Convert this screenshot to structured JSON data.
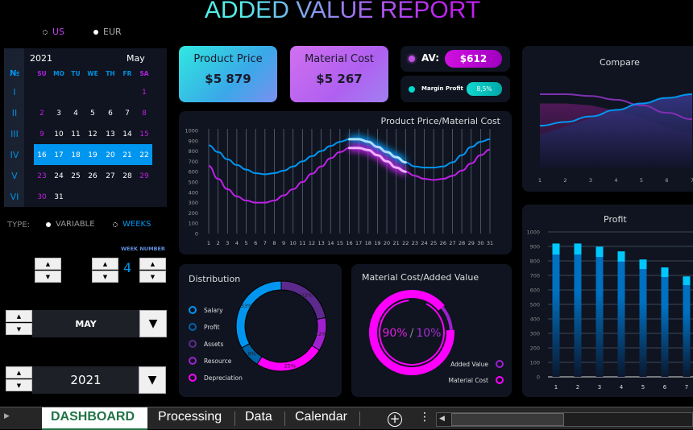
{
  "title": "ADDED VALUE REPORT",
  "currency": {
    "options": [
      "US",
      "EUR"
    ],
    "selected": "US"
  },
  "calendar": {
    "year": "2021",
    "month": "May",
    "no_label": "№",
    "weekdays": [
      "SU",
      "MO",
      "TU",
      "WE",
      "TH",
      "FR",
      "SA"
    ],
    "week_labels": [
      "I",
      "II",
      "III",
      "IV",
      "V",
      "VI"
    ],
    "weeks": [
      [
        "",
        "",
        "",
        "",
        "",
        "",
        "1"
      ],
      [
        "2",
        "3",
        "4",
        "5",
        "6",
        "7",
        "8"
      ],
      [
        "9",
        "10",
        "11",
        "12",
        "13",
        "14",
        "15"
      ],
      [
        "16",
        "17",
        "18",
        "19",
        "20",
        "21",
        "22"
      ],
      [
        "23",
        "24",
        "25",
        "26",
        "27",
        "28",
        "29"
      ],
      [
        "30",
        "31",
        "",
        "",
        "",
        "",
        ""
      ]
    ],
    "selected_week": 4
  },
  "type": {
    "label": "TYPE:",
    "options": [
      "VARIABLE",
      "WEEKS"
    ],
    "selected": "WEEKS"
  },
  "week_number": {
    "label": "WEEK NUMBER",
    "value": "4"
  },
  "month_select": {
    "value": "MAY"
  },
  "year_select": {
    "value": "2021"
  },
  "kpis": {
    "product_price": {
      "label": "Product Price",
      "value": "$5 879"
    },
    "material_cost": {
      "label": "Material Cost",
      "value": "$5 267"
    },
    "av": {
      "label": "AV:",
      "value": "$612"
    },
    "margin": {
      "label": "Margin Profit",
      "value": "8,5%"
    }
  },
  "colors": {
    "blue": "#0096f0",
    "purple": "#c020e8",
    "magenta": "#ff00ff",
    "cyan": "#00d0ff"
  },
  "chart_data": [
    {
      "type": "line",
      "title": "Product Price/Material Cost",
      "ylim": [
        0,
        1000
      ],
      "yticks": [
        0,
        100,
        200,
        300,
        400,
        500,
        600,
        700,
        800,
        900,
        1000
      ],
      "x": [
        1,
        2,
        3,
        4,
        5,
        6,
        7,
        8,
        9,
        10,
        11,
        12,
        13,
        14,
        15,
        16,
        17,
        18,
        19,
        20,
        21,
        22,
        23,
        24,
        25,
        26,
        27,
        28,
        29,
        30,
        31
      ],
      "highlight_range": [
        16,
        22
      ],
      "series": [
        {
          "color": "#0096f0",
          "values": [
            855,
            790,
            720,
            665,
            620,
            585,
            575,
            585,
            610,
            650,
            700,
            750,
            800,
            850,
            890,
            915,
            915,
            890,
            840,
            790,
            740,
            690,
            650,
            640,
            640,
            650,
            690,
            760,
            840,
            890,
            915
          ]
        },
        {
          "color": "#c020e8",
          "values": [
            655,
            530,
            430,
            360,
            320,
            300,
            300,
            320,
            370,
            430,
            500,
            580,
            650,
            730,
            790,
            830,
            830,
            810,
            760,
            700,
            640,
            600,
            560,
            530,
            520,
            530,
            560,
            610,
            680,
            760,
            815
          ]
        }
      ]
    },
    {
      "type": "pie",
      "title": "Distribution",
      "labels": [
        "Salary",
        "Profit",
        "Assets",
        "Resource",
        "Depreciation"
      ],
      "values": [
        33,
        8,
        22,
        12,
        25
      ],
      "colors": [
        "#0096f0",
        "#0064a8",
        "#5c2a8c",
        "#a020d0",
        "#ff00ff"
      ]
    },
    {
      "type": "pie",
      "title": "Material Cost/Added Value",
      "labels": [
        "Added Value",
        "Material Cost"
      ],
      "values": [
        10,
        90
      ],
      "value_labels": [
        "10%",
        "90%"
      ],
      "colors": [
        "#a020d0",
        "#ff00ff"
      ]
    },
    {
      "type": "area",
      "title": "Compare",
      "x": [
        1,
        2,
        3,
        4,
        5,
        6,
        7
      ],
      "series": [
        {
          "color": "#8030b0",
          "values": [
            80,
            80,
            78,
            74,
            68,
            60,
            53
          ],
          "area": [
            70,
            70,
            68,
            62,
            54,
            44,
            38
          ]
        },
        {
          "color": "#0096f0",
          "values": [
            46,
            50,
            56,
            63,
            70,
            76,
            80
          ],
          "area": [
            36,
            45,
            54,
            63,
            70,
            76,
            80
          ]
        }
      ]
    },
    {
      "type": "bar",
      "title": "Profit",
      "categories": [
        "1",
        "2",
        "3",
        "4",
        "5",
        "6",
        "7"
      ],
      "ylim": [
        0,
        1000
      ],
      "yticks": [
        0,
        100,
        200,
        300,
        400,
        500,
        600,
        700,
        800,
        900,
        1000
      ],
      "series": [
        {
          "color": "#0070c0",
          "values": [
            843,
            843,
            827,
            795,
            744,
            688,
            633
          ]
        },
        {
          "color": "#00c8ff",
          "values": [
            77,
            77,
            71,
            71,
            66,
            67,
            60
          ]
        }
      ]
    }
  ],
  "sheet_tabs": [
    "DASHBOARD",
    "Processing",
    "Data",
    "Calendar"
  ],
  "active_tab": "DASHBOARD"
}
